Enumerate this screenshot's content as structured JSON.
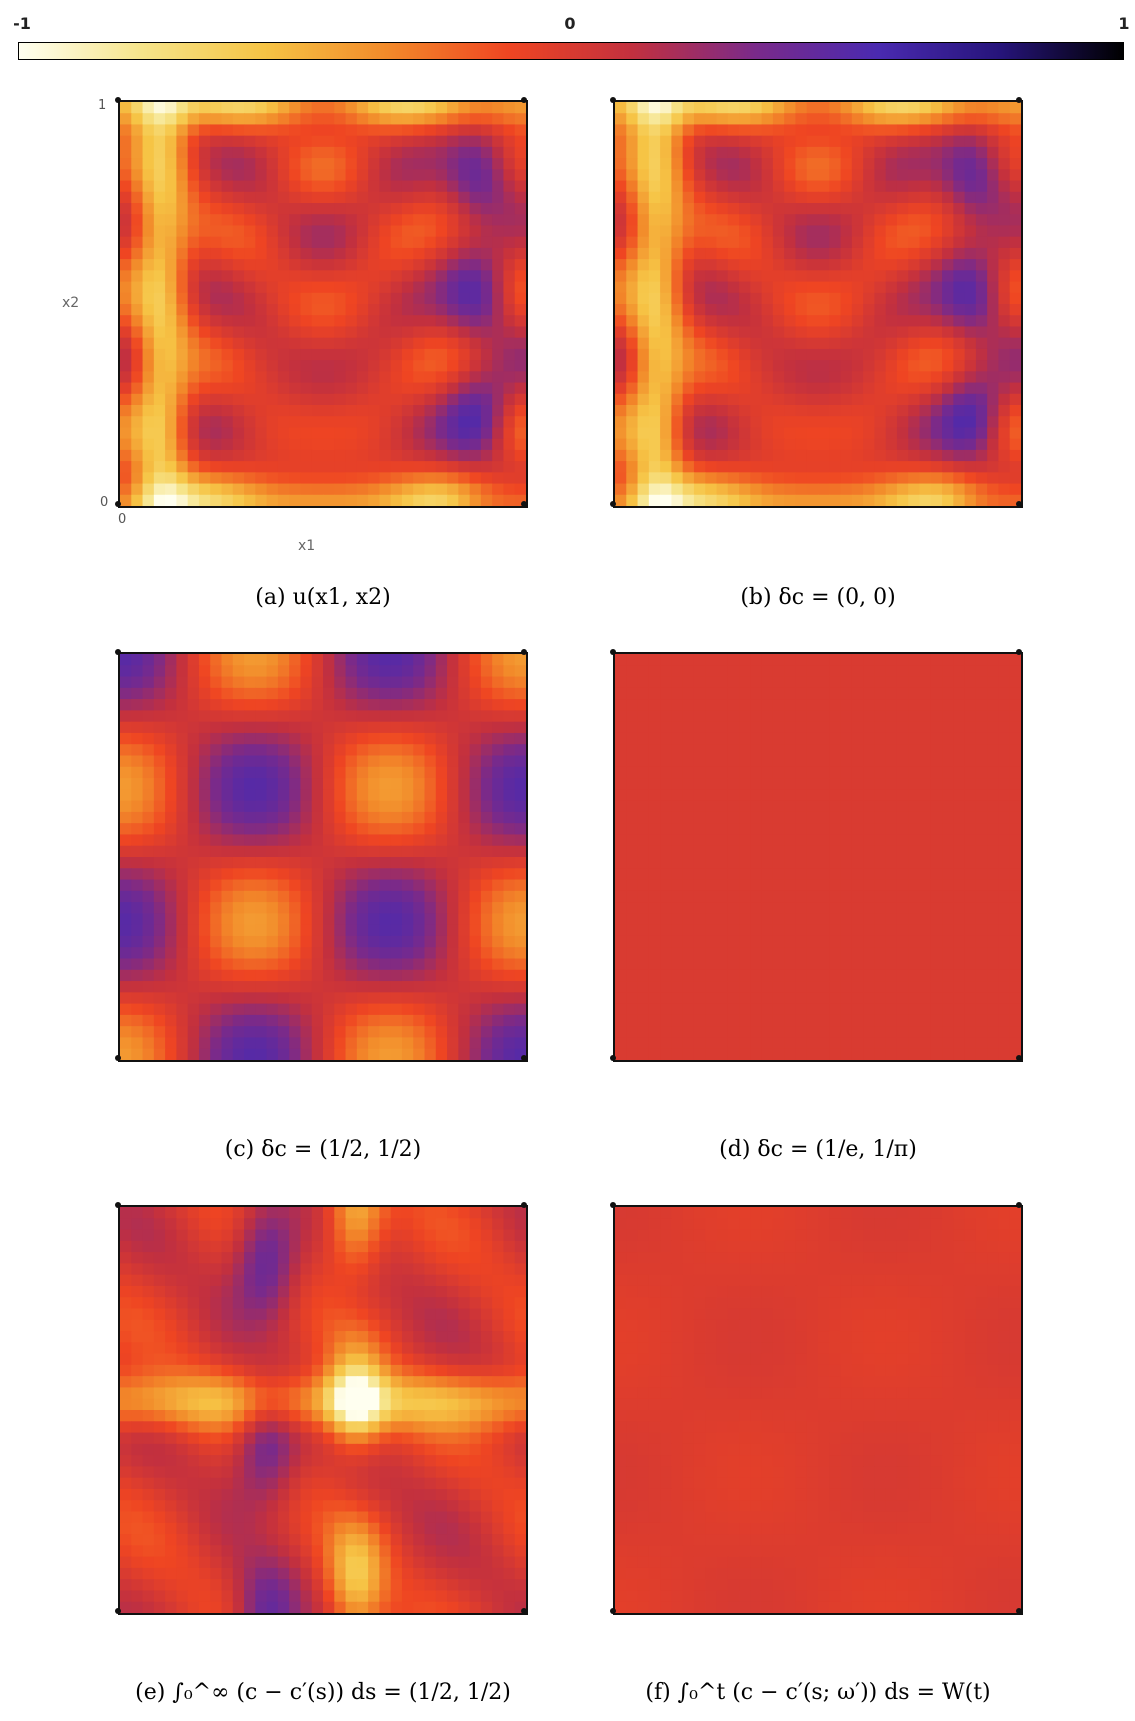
{
  "colorbar": {
    "ticks": [
      "-1",
      "0",
      "1"
    ],
    "stops": [
      "#fffff0",
      "#f6e48a",
      "#f6c445",
      "#f28a2a",
      "#ef4522",
      "#c2303f",
      "#7a2a8a",
      "#4a2ab0",
      "#26147a",
      "#000000"
    ]
  },
  "chart_data": [
    {
      "type": "heatmap",
      "panel": "a",
      "caption": "(a) u(x1, x2)",
      "xlabel": "x1",
      "ylabel": "x2",
      "x_ticks": [
        "0"
      ],
      "y_ticks": [
        "1",
        "0"
      ],
      "pattern": "edge-heavy"
    },
    {
      "type": "heatmap",
      "panel": "b",
      "caption": "(b) δc = (0, 0)",
      "pattern": "edge-heavy"
    },
    {
      "type": "heatmap",
      "panel": "c",
      "caption": "(c) δc = (1/2, 1/2)",
      "pattern": "lattice"
    },
    {
      "type": "heatmap",
      "panel": "d",
      "caption": "(d) δc = (1/e, 1/π)",
      "pattern": "uniform"
    },
    {
      "type": "heatmap",
      "panel": "e",
      "caption": "(e) ∫₀^∞ (c − c′(s)) ds = (1/2, 1/2)",
      "pattern": "cross"
    },
    {
      "type": "heatmap",
      "panel": "f",
      "caption": "(f) ∫₀^t (c − c′(s; ω′)) ds = W(t)",
      "pattern": "faint"
    }
  ]
}
